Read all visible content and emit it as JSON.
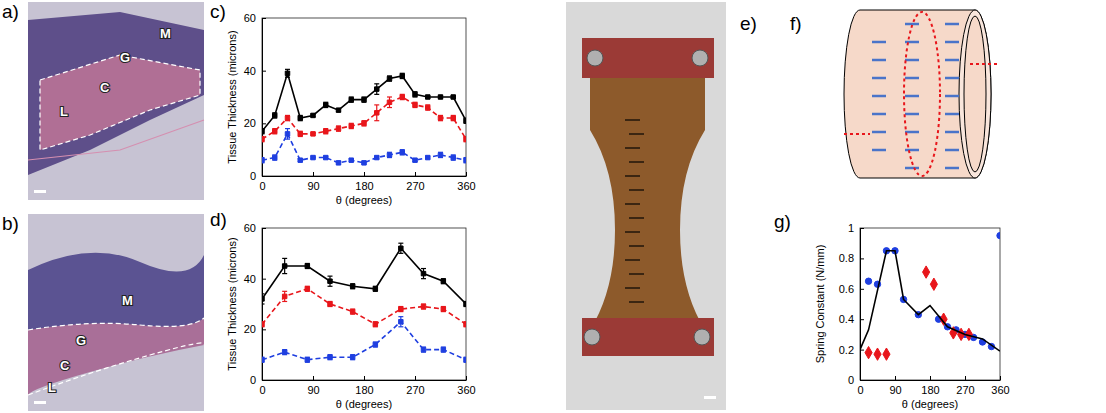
{
  "chart_data": [
    {
      "label": "c)",
      "type": "line",
      "x_label": "θ (degrees)",
      "y_label": "Tissue Thickness (microns)",
      "xlim": [
        0,
        360
      ],
      "xticks": [
        0,
        90,
        180,
        270,
        360
      ],
      "ylim": [
        0,
        60
      ],
      "yticks": [
        0,
        20,
        40,
        60
      ],
      "grid": false,
      "x": [
        0,
        22.5,
        45,
        67.5,
        90,
        112.5,
        135,
        157.5,
        180,
        202.5,
        225,
        247.5,
        270,
        292.5,
        315,
        337.5,
        360
      ],
      "series": [
        {
          "color": "#000000",
          "marker": "square",
          "line_style": "solid",
          "values": [
            17,
            23,
            39,
            22,
            23,
            27,
            25,
            29,
            29,
            33,
            37,
            38,
            31,
            30,
            30,
            30,
            21
          ],
          "errors": [
            1,
            1,
            1.5,
            1,
            0.5,
            1,
            0.5,
            1,
            1,
            2,
            1,
            1,
            1,
            0.5,
            0.5,
            0.5,
            1
          ]
        },
        {
          "color": "#e8161b",
          "marker": "square",
          "line_style": "dashed",
          "values": [
            14,
            17,
            22,
            16,
            16,
            17,
            18,
            19,
            20,
            24,
            28,
            30,
            27,
            26,
            22,
            22,
            14
          ],
          "errors": [
            1,
            1,
            1,
            1,
            0.5,
            1,
            1,
            1,
            1,
            3,
            2,
            1,
            1,
            1,
            1,
            1,
            1
          ]
        },
        {
          "color": "#1f3fe0",
          "marker": "square",
          "line_style": "dashed",
          "values": [
            6,
            7,
            16,
            6,
            7,
            7,
            5,
            6,
            5,
            7,
            8,
            9,
            6,
            7,
            8,
            7,
            6
          ],
          "errors": [
            1,
            1,
            2,
            0.5,
            0.5,
            0.5,
            0.5,
            0.5,
            0.5,
            0.5,
            1,
            1,
            0.5,
            0.5,
            1,
            1,
            1
          ]
        }
      ]
    },
    {
      "label": "d)",
      "type": "line",
      "x_label": "θ (degrees)",
      "y_label": "Tissue Thickness (microns)",
      "xlim": [
        0,
        360
      ],
      "xticks": [
        0,
        90,
        180,
        270,
        360
      ],
      "ylim": [
        0,
        60
      ],
      "yticks": [
        0,
        20,
        40,
        60
      ],
      "grid": false,
      "x": [
        0,
        40,
        80,
        120,
        160,
        200,
        245,
        285,
        320,
        360
      ],
      "series": [
        {
          "color": "#000000",
          "marker": "square",
          "line_style": "solid",
          "values": [
            32,
            45,
            45,
            39,
            37,
            36,
            52,
            42,
            39,
            30
          ],
          "errors": [
            2,
            3,
            1,
            2,
            1,
            1,
            2,
            2,
            1,
            1
          ]
        },
        {
          "color": "#e8161b",
          "marker": "square",
          "line_style": "dashed",
          "values": [
            22,
            33,
            36,
            30,
            27,
            22,
            28,
            29,
            28,
            22
          ],
          "errors": [
            1,
            2,
            1,
            1,
            1,
            1,
            1,
            1,
            1,
            1
          ]
        },
        {
          "color": "#1f3fe0",
          "marker": "square",
          "line_style": "dashed",
          "values": [
            8,
            11,
            8,
            9,
            9,
            14,
            23,
            12,
            12,
            8
          ],
          "errors": [
            1,
            1,
            1,
            1,
            1,
            1,
            2,
            1,
            1,
            1
          ]
        }
      ]
    },
    {
      "label": "g)",
      "type": "scatter",
      "x_label": "θ (degrees)",
      "y_label": "Spring Constant (N/mm)",
      "xlim": [
        0,
        360
      ],
      "xticks": [
        0,
        90,
        180,
        270,
        360
      ],
      "ylim": [
        0,
        1
      ],
      "yticks": [
        0,
        0.2,
        0.4,
        0.6,
        0.8,
        1
      ],
      "grid": false,
      "series": [
        {
          "type": "scatter",
          "color": "#1f3fe0",
          "marker": "circle",
          "x": [
            22,
            45,
            68,
            90,
            112,
            150,
            202,
            225,
            247,
            270,
            292,
            315,
            338,
            360
          ],
          "values": [
            0.65,
            0.63,
            0.85,
            0.85,
            0.53,
            0.43,
            0.4,
            0.35,
            0.33,
            0.3,
            0.28,
            0.25,
            0.22,
            0.95
          ]
        },
        {
          "type": "scatter",
          "color": "#e8161b",
          "marker": "diamond",
          "x": [
            22,
            45,
            68,
            170,
            190,
            215,
            240,
            260,
            280
          ],
          "values": [
            0.18,
            0.17,
            0.17,
            0.71,
            0.63,
            0.4,
            0.31,
            0.3,
            0.3
          ]
        },
        {
          "type": "line",
          "color": "#000000",
          "marker": "none",
          "line_style": "solid",
          "x": [
            0,
            22,
            68,
            90,
            112,
            150,
            180,
            225,
            270,
            315,
            360
          ],
          "values": [
            0.2,
            0.33,
            0.85,
            0.85,
            0.53,
            0.43,
            0.49,
            0.35,
            0.3,
            0.27,
            0.19
          ]
        }
      ]
    }
  ],
  "figures": [
    {
      "label": "a)",
      "regions": [
        "M",
        "G",
        "C",
        "L"
      ]
    },
    {
      "label": "b)",
      "regions": [
        "M",
        "G",
        "C",
        "L"
      ]
    },
    {
      "label": "e)"
    },
    {
      "label": "f)"
    }
  ]
}
